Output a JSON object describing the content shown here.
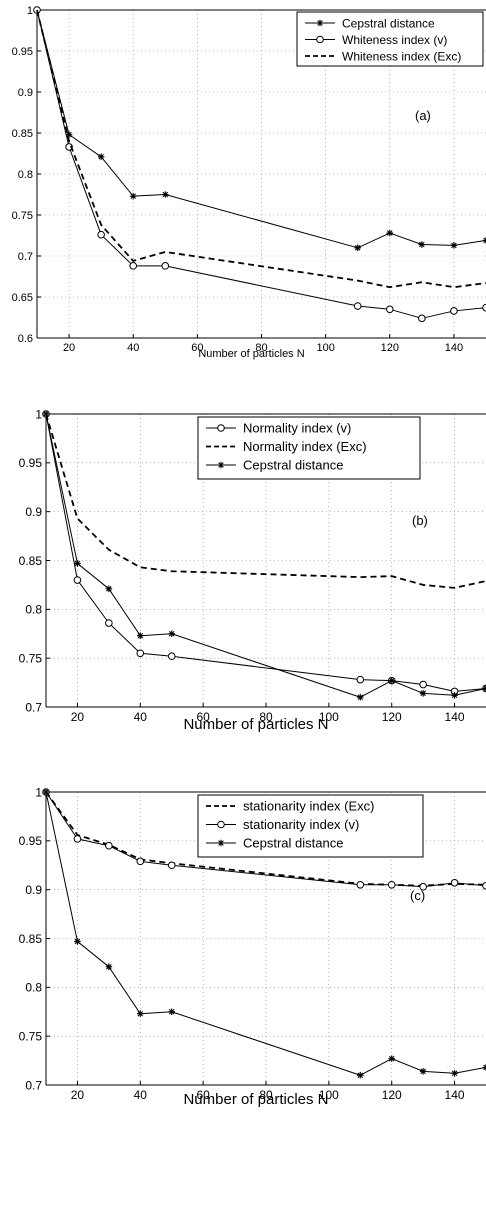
{
  "chart_data": [
    {
      "type": "line",
      "xlabel": "Number of particles N",
      "ylabel": "",
      "xlim": [
        10,
        150
      ],
      "ylim": [
        0.6,
        1
      ],
      "xticks": [
        20,
        40,
        60,
        80,
        100,
        120,
        140
      ],
      "yticks": [
        0.6,
        0.65,
        0.7,
        0.75,
        0.8,
        0.85,
        0.9,
        0.95,
        1
      ],
      "ytick_labels": [
        "0.6",
        "0.65",
        "0.7",
        "0.75",
        "0.8",
        "0.85",
        "0.9",
        "0.95",
        "1"
      ],
      "grid": true,
      "legend_position": "top-right",
      "annotation": "(a)",
      "series": [
        {
          "name": "Cepstral distance",
          "marker": "star",
          "line": "solid",
          "x": [
            10,
            20,
            30,
            40,
            50,
            110,
            120,
            130,
            140,
            150
          ],
          "y": [
            1.0,
            0.848,
            0.821,
            0.773,
            0.775,
            0.71,
            0.728,
            0.714,
            0.713,
            0.719
          ]
        },
        {
          "name": "Whiteness index (v)",
          "marker": "circle",
          "line": "solid",
          "x": [
            10,
            20,
            30,
            40,
            50,
            110,
            120,
            130,
            140,
            150
          ],
          "y": [
            1.0,
            0.833,
            0.726,
            0.688,
            0.688,
            0.639,
            0.635,
            0.624,
            0.633,
            0.637
          ]
        },
        {
          "name": "Whiteness index (Exc)",
          "marker": "none",
          "line": "dashed",
          "x": [
            10,
            20,
            30,
            40,
            50,
            110,
            120,
            130,
            140,
            150
          ],
          "y": [
            1.0,
            0.84,
            0.738,
            0.694,
            0.705,
            0.67,
            0.662,
            0.668,
            0.662,
            0.667
          ]
        }
      ]
    },
    {
      "type": "line",
      "xlabel": "Number of particles N",
      "ylabel": "",
      "xlim": [
        10,
        150
      ],
      "ylim": [
        0.7,
        1
      ],
      "xticks": [
        20,
        40,
        60,
        80,
        100,
        120,
        140
      ],
      "yticks": [
        0.7,
        0.75,
        0.8,
        0.85,
        0.9,
        0.95,
        1
      ],
      "ytick_labels": [
        "0.7",
        "0.75",
        "0.8",
        "0.85",
        "0.9",
        "0.95",
        "1"
      ],
      "grid": true,
      "legend_position": "top-right",
      "annotation": "(b)",
      "series": [
        {
          "name": "Normality index (v)",
          "marker": "circle",
          "line": "solid",
          "x": [
            10,
            20,
            30,
            40,
            50,
            110,
            120,
            130,
            140,
            150
          ],
          "y": [
            1.0,
            0.83,
            0.786,
            0.755,
            0.752,
            0.728,
            0.727,
            0.723,
            0.716,
            0.719
          ]
        },
        {
          "name": "Normality index (Exc)",
          "marker": "none",
          "line": "dashed",
          "x": [
            10,
            20,
            30,
            40,
            50,
            110,
            120,
            130,
            140,
            150
          ],
          "y": [
            1.0,
            0.893,
            0.861,
            0.843,
            0.839,
            0.833,
            0.834,
            0.825,
            0.822,
            0.829
          ]
        },
        {
          "name": "Cepstral distance",
          "marker": "star",
          "line": "solid",
          "x": [
            10,
            20,
            30,
            40,
            50,
            110,
            120,
            130,
            140,
            150
          ],
          "y": [
            1.0,
            0.847,
            0.821,
            0.773,
            0.775,
            0.71,
            0.727,
            0.714,
            0.712,
            0.719
          ]
        }
      ]
    },
    {
      "type": "line",
      "xlabel": "Number of particles N",
      "ylabel": "",
      "xlim": [
        10,
        150
      ],
      "ylim": [
        0.7,
        1
      ],
      "xticks": [
        20,
        40,
        60,
        80,
        100,
        120,
        140
      ],
      "yticks": [
        0.7,
        0.75,
        0.8,
        0.85,
        0.9,
        0.95,
        1
      ],
      "ytick_labels": [
        "0.7",
        "0.75",
        "0.8",
        "0.85",
        "0.9",
        "0.95",
        "1"
      ],
      "grid": true,
      "legend_position": "top-right",
      "annotation": "(c)",
      "series": [
        {
          "name": "stationarity index (Exc)",
          "marker": "none",
          "line": "dashed",
          "x": [
            10,
            20,
            30,
            40,
            50,
            110,
            120,
            130,
            140,
            150
          ],
          "y": [
            1.0,
            0.956,
            0.946,
            0.931,
            0.927,
            0.906,
            0.905,
            0.904,
            0.906,
            0.905
          ]
        },
        {
          "name": "stationarity index (v)",
          "marker": "circle",
          "line": "solid",
          "x": [
            10,
            20,
            30,
            40,
            50,
            110,
            120,
            130,
            140,
            150
          ],
          "y": [
            1.0,
            0.952,
            0.945,
            0.929,
            0.925,
            0.905,
            0.905,
            0.903,
            0.907,
            0.904
          ]
        },
        {
          "name": "Cepstral distance",
          "marker": "star",
          "line": "solid",
          "x": [
            10,
            20,
            30,
            40,
            50,
            110,
            120,
            130,
            140,
            150
          ],
          "y": [
            1.0,
            0.847,
            0.821,
            0.773,
            0.775,
            0.71,
            0.727,
            0.714,
            0.712,
            0.718
          ]
        }
      ]
    }
  ]
}
